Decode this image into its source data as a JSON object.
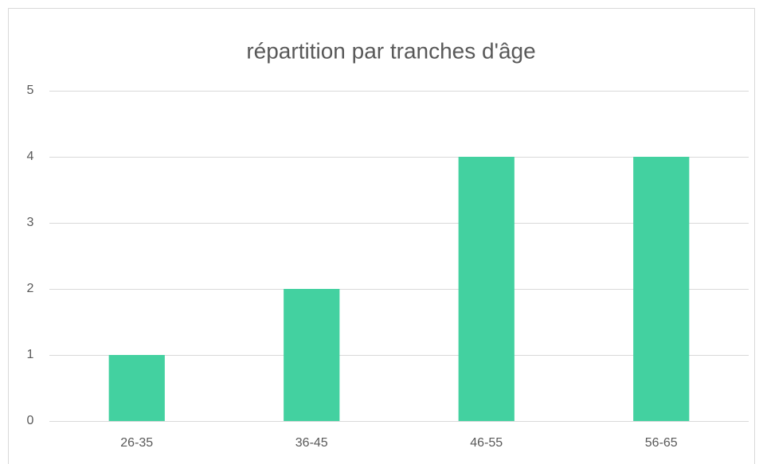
{
  "chart_data": {
    "type": "bar",
    "title": "répartition par tranches d'âge",
    "categories": [
      "26-35",
      "36-45",
      "46-55",
      "56-65"
    ],
    "values": [
      1,
      2,
      4,
      4
    ],
    "color": "#43d1a0",
    "ylim": [
      0,
      5
    ],
    "yticks": [
      0,
      1,
      2,
      3,
      4,
      5
    ],
    "grid": true
  }
}
